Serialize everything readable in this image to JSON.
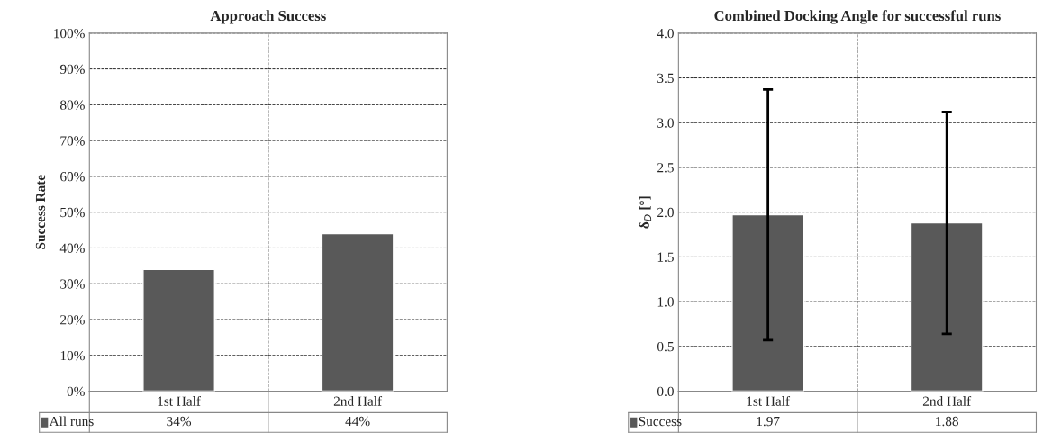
{
  "chart_data": [
    {
      "type": "bar",
      "title": "Approach Success",
      "ylabel": "Success Rate",
      "categories": [
        "1st Half",
        "2nd Half"
      ],
      "series": [
        {
          "name": "All runs",
          "color": "#595959",
          "values": [
            34,
            44
          ],
          "value_labels": [
            "34%",
            "44%"
          ]
        }
      ],
      "ylim": [
        0,
        100
      ],
      "yticks": [
        {
          "value": 0,
          "label": "0%"
        },
        {
          "value": 10,
          "label": "10%"
        },
        {
          "value": 20,
          "label": "20%"
        },
        {
          "value": 30,
          "label": "30%"
        },
        {
          "value": 40,
          "label": "40%"
        },
        {
          "value": 50,
          "label": "50%"
        },
        {
          "value": 60,
          "label": "60%"
        },
        {
          "value": 70,
          "label": "70%"
        },
        {
          "value": 80,
          "label": "80%"
        },
        {
          "value": 90,
          "label": "90%"
        },
        {
          "value": 100,
          "label": "100%"
        }
      ],
      "grid": true
    },
    {
      "type": "bar",
      "title": "Combined Docking Angle for successful runs",
      "ylabel": "δ$_{D}$ [°]",
      "categories": [
        "1st Half",
        "2nd Half"
      ],
      "series": [
        {
          "name": "Success",
          "color": "#595959",
          "values": [
            1.97,
            1.88
          ],
          "errors": [
            1.4,
            1.24
          ],
          "value_labels": [
            "1.97",
            "1.88"
          ]
        }
      ],
      "ylim": [
        0,
        4
      ],
      "yticks": [
        {
          "value": 0,
          "label": "0.0"
        },
        {
          "value": 0.5,
          "label": "0.5"
        },
        {
          "value": 1,
          "label": "1.0"
        },
        {
          "value": 1.5,
          "label": "1.5"
        },
        {
          "value": 2,
          "label": "2.0"
        },
        {
          "value": 2.5,
          "label": "2.5"
        },
        {
          "value": 3,
          "label": "3.0"
        },
        {
          "value": 3.5,
          "label": "3.5"
        },
        {
          "value": 4,
          "label": "4.0"
        }
      ],
      "grid": true
    }
  ]
}
